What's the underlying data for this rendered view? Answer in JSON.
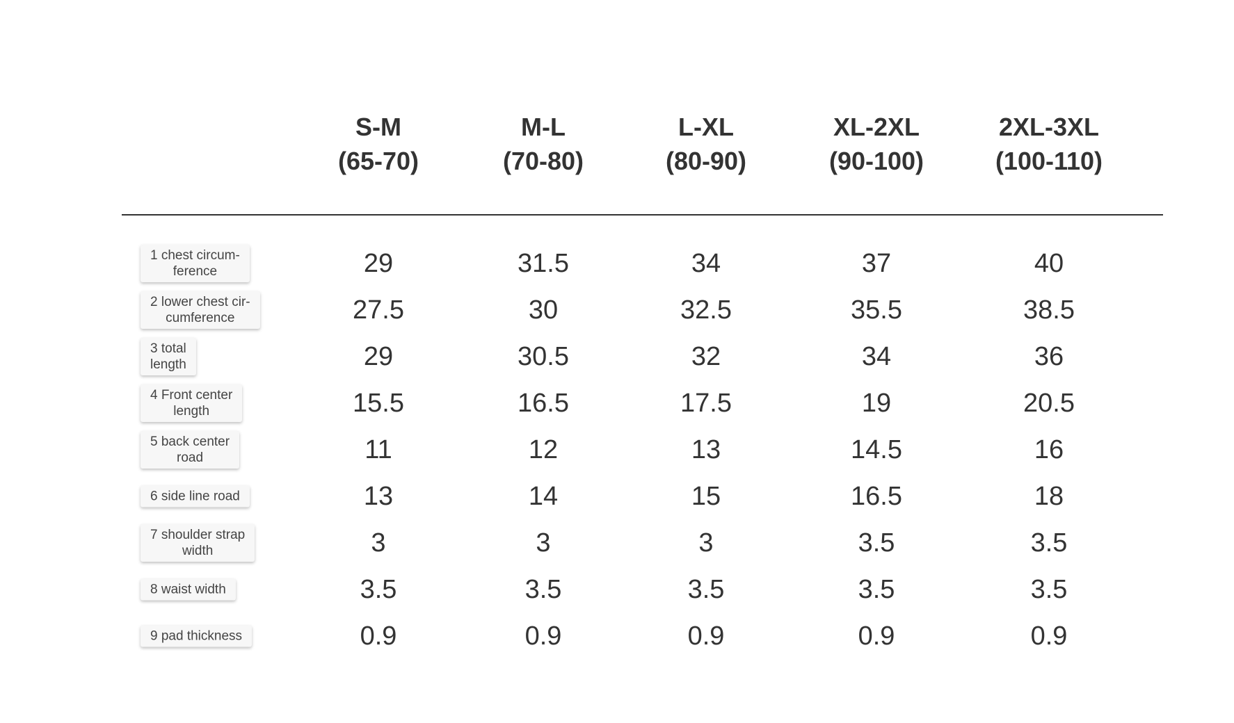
{
  "table": {
    "columns": [
      {
        "size": "S-M",
        "range": "(65-70)"
      },
      {
        "size": "M-L",
        "range": "(70-80)"
      },
      {
        "size": "L-XL",
        "range": "(80-90)"
      },
      {
        "size": "XL-2XL",
        "range": "(90-100)"
      },
      {
        "size": "2XL-3XL",
        "range": "(100-110)"
      }
    ],
    "rows": [
      {
        "label": [
          "1 chest circum-",
          "ference"
        ],
        "values": [
          29,
          31.5,
          34,
          37,
          40
        ]
      },
      {
        "label": [
          "2 lower chest cir-",
          "cumference"
        ],
        "values": [
          27.5,
          30,
          32.5,
          35.5,
          38.5
        ]
      },
      {
        "label": [
          "3 total",
          "length"
        ],
        "values": [
          29,
          30.5,
          32,
          34,
          36
        ]
      },
      {
        "label": [
          "4 Front center",
          "length"
        ],
        "values": [
          15.5,
          16.5,
          17.5,
          19,
          20.5
        ]
      },
      {
        "label": [
          "5 back center",
          "road"
        ],
        "values": [
          11,
          12,
          13,
          14.5,
          16
        ]
      },
      {
        "label": [
          "6 side line road"
        ],
        "values": [
          13,
          14,
          15,
          16.5,
          18
        ]
      },
      {
        "label": [
          "7 shoulder strap",
          "width"
        ],
        "values": [
          3,
          3,
          3,
          3.5,
          3.5
        ]
      },
      {
        "label": [
          "8 waist width"
        ],
        "values": [
          3.5,
          3.5,
          3.5,
          3.5,
          3.5
        ]
      },
      {
        "label": [
          "9 pad thickness"
        ],
        "values": [
          0.9,
          0.9,
          0.9,
          0.9,
          0.9
        ]
      }
    ]
  }
}
